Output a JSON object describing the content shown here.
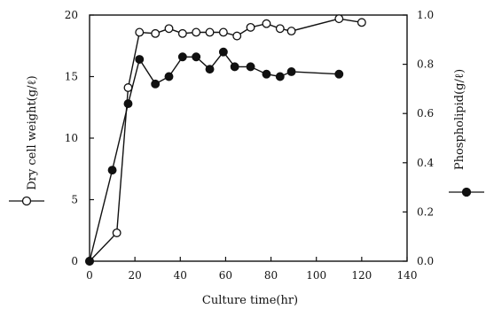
{
  "chart_data": {
    "type": "line",
    "xlabel": "Culture time(hr)",
    "ylabel_left": "Dry cell weight(g/ℓ)",
    "ylabel_right": "Phospholipid(g/ℓ)",
    "xlim": [
      0,
      140
    ],
    "ylim_left": [
      0,
      20
    ],
    "ylim_right": [
      0.0,
      1.0
    ],
    "x_ticks": [
      "0",
      "20",
      "40",
      "60",
      "80",
      "100",
      "120",
      "140"
    ],
    "y_left_ticks": [
      "0",
      "5",
      "10",
      "15",
      "20"
    ],
    "y_right_ticks": [
      "0.0",
      "0.2",
      "0.4",
      "0.6",
      "0.8",
      "1.0"
    ],
    "grid": false,
    "series": [
      {
        "name": "Dry cell weight",
        "marker": "open-circle",
        "axis": "left",
        "x": [
          0,
          12,
          17,
          22,
          29,
          35,
          41,
          47,
          53,
          59,
          65,
          71,
          78,
          84,
          89,
          110,
          120
        ],
        "y": [
          0,
          2.3,
          14.1,
          18.6,
          18.5,
          18.9,
          18.5,
          18.6,
          18.6,
          18.6,
          18.3,
          19.0,
          19.3,
          18.9,
          18.7,
          19.7,
          19.4
        ]
      },
      {
        "name": "Phospholipid",
        "marker": "filled-circle",
        "axis": "right",
        "x": [
          0,
          10,
          17,
          22,
          29,
          35,
          41,
          47,
          53,
          59,
          64,
          71,
          78,
          84,
          89,
          110
        ],
        "y": [
          0.0,
          0.37,
          0.64,
          0.82,
          0.72,
          0.75,
          0.83,
          0.83,
          0.78,
          0.85,
          0.79,
          0.79,
          0.76,
          0.75,
          0.77,
          0.76
        ]
      }
    ]
  }
}
